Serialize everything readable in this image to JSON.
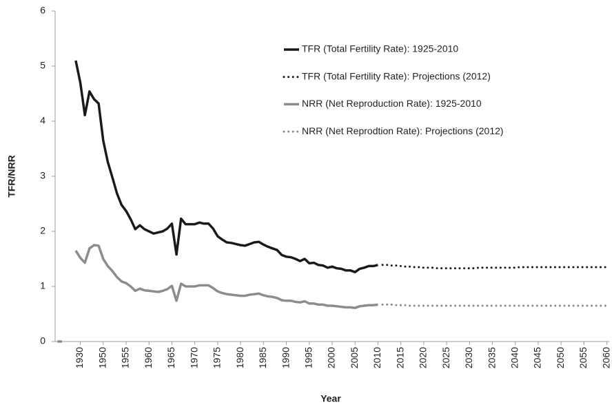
{
  "chart_data": {
    "type": "line",
    "y_label": "TFR/NRR",
    "x_label": "Year",
    "ylim": [
      0,
      6
    ],
    "yticks": [
      0,
      1,
      2,
      3,
      4,
      5,
      6
    ],
    "legend": "upper right",
    "categories": [
      null,
      null,
      null,
      null,
      null,
      "1930",
      null,
      null,
      null,
      null,
      "1950",
      null,
      null,
      null,
      null,
      "1955",
      null,
      null,
      null,
      null,
      "1960",
      null,
      null,
      null,
      null,
      "1965",
      null,
      null,
      null,
      null,
      "1970",
      null,
      null,
      null,
      null,
      "1975",
      null,
      null,
      null,
      null,
      "1980",
      null,
      null,
      null,
      null,
      "1985",
      null,
      null,
      null,
      null,
      "1990",
      null,
      null,
      null,
      null,
      "1995",
      null,
      null,
      null,
      null,
      "2000",
      null,
      null,
      null,
      null,
      "2005",
      null,
      null,
      null,
      null,
      "2010",
      null,
      null,
      null,
      null,
      "2015",
      null,
      null,
      null,
      null,
      "2020",
      null,
      null,
      null,
      null,
      "2025",
      null,
      null,
      null,
      null,
      "2030",
      null,
      null,
      null,
      null,
      "2035",
      null,
      null,
      null,
      null,
      "2040",
      null,
      null,
      null,
      null,
      "2045",
      null,
      null,
      null,
      null,
      "2050",
      null,
      null,
      null,
      null,
      "2055",
      null,
      null,
      null,
      null,
      "2060"
    ],
    "series": [
      {
        "name": "TFR (Total Fertility Rate): 1925-2010",
        "color": "#1a1a1a",
        "dash": false,
        "width": 3.5,
        "values": [
          null,
          null,
          null,
          null,
          5.1,
          4.7,
          4.11,
          4.54,
          4.4,
          4.32,
          3.65,
          3.26,
          2.98,
          2.69,
          2.48,
          2.37,
          2.22,
          2.04,
          2.11,
          2.04,
          2.0,
          1.96,
          1.98,
          2.0,
          2.05,
          2.14,
          1.58,
          2.23,
          2.13,
          2.13,
          2.13,
          2.16,
          2.14,
          2.14,
          2.05,
          1.91,
          1.85,
          1.8,
          1.79,
          1.77,
          1.75,
          1.74,
          1.77,
          1.8,
          1.81,
          1.76,
          1.72,
          1.69,
          1.66,
          1.57,
          1.54,
          1.53,
          1.5,
          1.46,
          1.5,
          1.42,
          1.43,
          1.39,
          1.38,
          1.34,
          1.36,
          1.33,
          1.32,
          1.29,
          1.29,
          1.26,
          1.32,
          1.34,
          1.37,
          1.37,
          1.39,
          null,
          null,
          null,
          null,
          null,
          null,
          null,
          null,
          null,
          null,
          null,
          null,
          null,
          null,
          null,
          null,
          null,
          null,
          null,
          null,
          null,
          null,
          null,
          null,
          null,
          null,
          null,
          null,
          null,
          null,
          null,
          null,
          null,
          null,
          null,
          null,
          null,
          null,
          null,
          null,
          null,
          null,
          null,
          null,
          null,
          null,
          null,
          null,
          null,
          null
        ]
      },
      {
        "name": "TFR (Total Fertility Rate): Projections (2012)",
        "color": "#1a1a1a",
        "dash": true,
        "width": 3,
        "values": [
          null,
          null,
          null,
          null,
          null,
          null,
          null,
          null,
          null,
          null,
          null,
          null,
          null,
          null,
          null,
          null,
          null,
          null,
          null,
          null,
          null,
          null,
          null,
          null,
          null,
          null,
          null,
          null,
          null,
          null,
          null,
          null,
          null,
          null,
          null,
          null,
          null,
          null,
          null,
          null,
          null,
          null,
          null,
          null,
          null,
          null,
          null,
          null,
          null,
          null,
          null,
          null,
          null,
          null,
          null,
          null,
          null,
          null,
          null,
          null,
          null,
          null,
          null,
          null,
          null,
          null,
          null,
          null,
          null,
          null,
          null,
          1.39,
          1.39,
          1.38,
          1.38,
          1.37,
          1.36,
          1.36,
          1.35,
          1.35,
          1.34,
          1.34,
          1.34,
          1.33,
          1.33,
          1.33,
          1.33,
          1.33,
          1.33,
          1.33,
          1.33,
          1.33,
          1.34,
          1.34,
          1.34,
          1.34,
          1.34,
          1.34,
          1.34,
          1.34,
          1.34,
          1.35,
          1.35,
          1.35,
          1.35,
          1.35,
          1.35,
          1.35,
          1.35,
          1.35,
          1.35,
          1.35,
          1.35,
          1.35,
          1.35,
          1.35,
          1.35,
          1.35,
          1.35,
          1.35,
          1.35
        ]
      },
      {
        "name": "NRR (Net Reproduction Rate): 1925-2010",
        "color": "#8c8c8c",
        "dash": false,
        "width": 3.5,
        "values": [
          0,
          0,
          null,
          null,
          1.65,
          1.52,
          1.43,
          1.69,
          1.75,
          1.74,
          1.5,
          1.37,
          1.28,
          1.17,
          1.09,
          1.06,
          1.0,
          0.92,
          0.96,
          0.93,
          0.92,
          0.91,
          0.9,
          0.92,
          0.95,
          1.01,
          0.74,
          1.05,
          1.0,
          1.0,
          1.0,
          1.02,
          1.02,
          1.02,
          0.97,
          0.91,
          0.88,
          0.86,
          0.85,
          0.84,
          0.83,
          0.83,
          0.85,
          0.86,
          0.87,
          0.84,
          0.82,
          0.81,
          0.79,
          0.75,
          0.74,
          0.74,
          0.72,
          0.71,
          0.73,
          0.69,
          0.69,
          0.67,
          0.67,
          0.65,
          0.65,
          0.64,
          0.63,
          0.62,
          0.62,
          0.61,
          0.64,
          0.65,
          0.66,
          0.66,
          0.67,
          null,
          null,
          null,
          null,
          null,
          null,
          null,
          null,
          null,
          null,
          null,
          null,
          null,
          null,
          null,
          null,
          null,
          null,
          null,
          null,
          null,
          null,
          null,
          null,
          null,
          null,
          null,
          null,
          null,
          null,
          null,
          null,
          null,
          null,
          null,
          null,
          null,
          null,
          null,
          null,
          null,
          null,
          null,
          null,
          null,
          null,
          null,
          null,
          null,
          null
        ]
      },
      {
        "name": "NRR (Net Reprodtion Rate): Projections (2012)",
        "color": "#8c8c8c",
        "dash": true,
        "width": 3,
        "values": [
          null,
          null,
          null,
          null,
          null,
          null,
          null,
          null,
          null,
          null,
          null,
          null,
          null,
          null,
          null,
          null,
          null,
          null,
          null,
          null,
          null,
          null,
          null,
          null,
          null,
          null,
          null,
          null,
          null,
          null,
          null,
          null,
          null,
          null,
          null,
          null,
          null,
          null,
          null,
          null,
          null,
          null,
          null,
          null,
          null,
          null,
          null,
          null,
          null,
          null,
          null,
          null,
          null,
          null,
          null,
          null,
          null,
          null,
          null,
          null,
          null,
          null,
          null,
          null,
          null,
          null,
          null,
          null,
          null,
          null,
          null,
          0.67,
          0.67,
          0.67,
          0.66,
          0.66,
          0.66,
          0.65,
          0.65,
          0.65,
          0.65,
          0.65,
          0.65,
          0.65,
          0.65,
          0.65,
          0.65,
          0.65,
          0.65,
          0.65,
          0.65,
          0.65,
          0.65,
          0.65,
          0.65,
          0.65,
          0.65,
          0.65,
          0.65,
          0.65,
          0.65,
          0.65,
          0.65,
          0.65,
          0.65,
          0.65,
          0.65,
          0.65,
          0.65,
          0.65,
          0.65,
          0.65,
          0.65,
          0.65,
          0.65,
          0.65,
          0.65,
          0.65,
          0.65,
          0.65,
          0.65
        ]
      }
    ]
  }
}
